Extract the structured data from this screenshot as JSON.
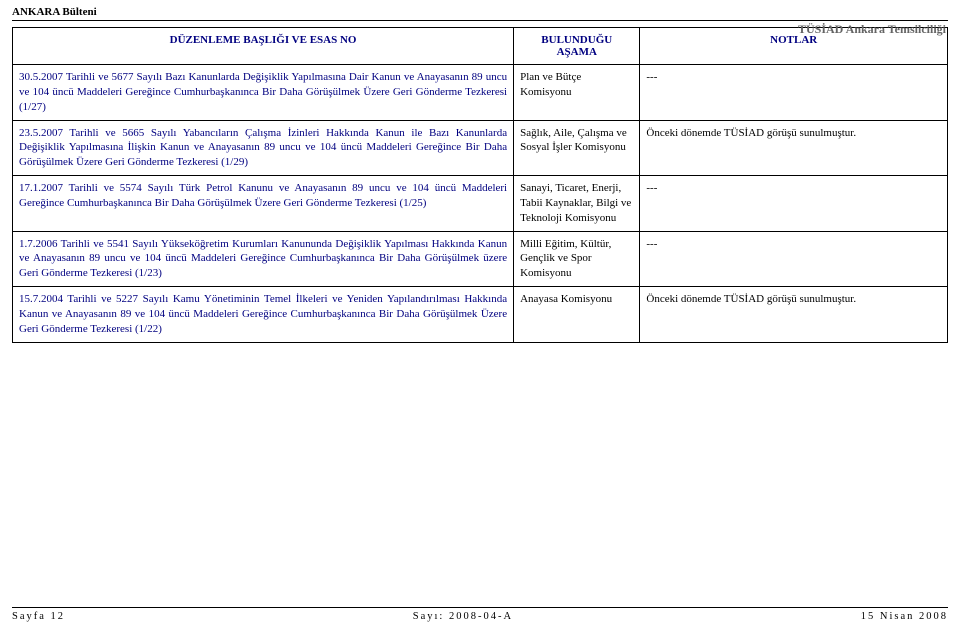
{
  "top_header": "ANKARA Bülteni",
  "right_header": "TÜSİAD Ankara Temsilciliği",
  "columns": {
    "c1": "DÜZENLEME BAŞLIĞI VE ESAS NO",
    "c2": "BULUNDUĞU AŞAMA",
    "c3": "NOTLAR"
  },
  "rows": [
    {
      "title": "30.5.2007 Tarihli ve 5677 Sayılı Bazı Kanunlarda Değişiklik Yapılmasına Dair Kanun ve Anayasanın 89 uncu ve 104 üncü Maddeleri Gereğince Cumhurbaşkanınca Bir Daha Görüşülmek Üzere Geri Gönderme Tezkeresi (1/27)",
      "stage": "Plan ve Bütçe Komisyonu",
      "note": "---",
      "note_justify": false
    },
    {
      "title": "23.5.2007 Tarihli ve 5665 Sayılı Yabancıların Çalışma İzinleri Hakkında Kanun ile Bazı Kanunlarda Değişiklik Yapılmasına İlişkin Kanun ve Anayasanın 89 uncu ve 104 üncü Maddeleri Gereğince Bir Daha Görüşülmek Üzere Geri Gönderme Tezkeresi (1/29)",
      "stage": "Sağlık, Aile, Çalışma ve Sosyal İşler Komisyonu",
      "note": "Önceki dönemde TÜSİAD görüşü sunulmuştur.",
      "note_justify": true
    },
    {
      "title": "17.1.2007 Tarihli ve 5574 Sayılı Türk Petrol Kanunu ve Anayasanın 89 uncu ve 104 üncü Maddeleri Gereğince Cumhurbaşkanınca Bir Daha Görüşülmek Üzere Geri Gönderme Tezkeresi (1/25)",
      "stage": "Sanayi, Ticaret, Enerji, Tabii Kaynaklar, Bilgi ve Teknoloji Komisyonu",
      "note": "---",
      "note_justify": false
    },
    {
      "title": "1.7.2006 Tarihli ve 5541 Sayılı Yükseköğretim Kurumları Kanununda Değişiklik Yapılması Hakkında Kanun ve Anayasanın 89 uncu ve 104 üncü Maddeleri Gereğince Cumhurbaşkanınca Bir Daha Görüşülmek üzere Geri Gönderme Tezkeresi (1/23)",
      "stage": "Milli Eğitim, Kültür, Gençlik ve Spor Komisyonu",
      "note": "---",
      "note_justify": false
    },
    {
      "title": "15.7.2004 Tarihli ve 5227 Sayılı Kamu Yönetiminin Temel İlkeleri ve Yeniden Yapılandırılması Hakkında Kanun ve Anayasanın 89 ve 104 üncü Maddeleri Gereğince Cumhurbaşkanınca Bir Daha Görüşülmek Üzere Geri Gönderme Tezkeresi (1/22)",
      "stage": "Anayasa Komisyonu",
      "note": "Önceki dönemde TÜSİAD görüşü sunulmuştur.",
      "note_justify": true
    }
  ],
  "footer": {
    "left": "Sayfa 12",
    "mid": "Sayı: 2008-04-A",
    "right": "15 Nisan 2008"
  }
}
